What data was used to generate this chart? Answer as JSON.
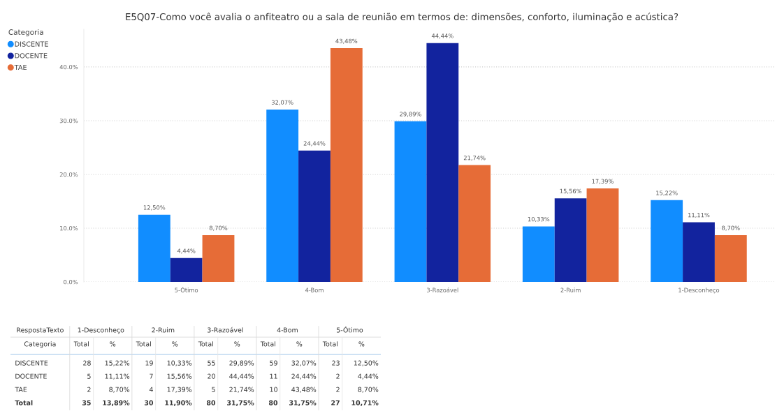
{
  "chart_data": [
    {
      "type": "bar",
      "title": "E5Q07-Como você avalia o anfiteatro ou a sala de reunião em termos de: dimensões, conforto, iluminação e acústica?",
      "legend_title": "Categoria",
      "categories": [
        "5-Ótimo",
        "4-Bom",
        "3-Razoável",
        "2-Ruim",
        "1-Desconheço"
      ],
      "series": [
        {
          "name": "DISCENTE",
          "color": "#118dff",
          "values": [
            12.5,
            32.07,
            29.89,
            10.33,
            15.22
          ],
          "value_labels": [
            "12,50%",
            "32,07%",
            "29,89%",
            "10,33%",
            "15,22%"
          ]
        },
        {
          "name": "DOCENTE",
          "color": "#12239e",
          "values": [
            4.44,
            24.44,
            44.44,
            15.56,
            11.11
          ],
          "value_labels": [
            "4,44%",
            "24,44%",
            "44,44%",
            "15,56%",
            "11,11%"
          ]
        },
        {
          "name": "TAE",
          "color": "#e66c37",
          "values": [
            8.7,
            43.48,
            21.74,
            17.39,
            8.7
          ],
          "value_labels": [
            "8,70%",
            "43,48%",
            "21,74%",
            "17,39%",
            "8,70%"
          ]
        }
      ],
      "ylim": [
        0,
        47
      ],
      "yticks": [
        {
          "value": 0,
          "label": "0.0%"
        },
        {
          "value": 10,
          "label": "10.0%"
        },
        {
          "value": 20,
          "label": "20.0%"
        },
        {
          "value": 30,
          "label": "30.0%"
        },
        {
          "value": 40,
          "label": "40.0%"
        }
      ],
      "grid": "y",
      "legend": "top left"
    },
    {
      "type": "other",
      "xlabel": "RespostaTexto",
      "ylabel": "Categoria",
      "categories": [
        "1-Desconheço",
        "2-Ruim",
        "3-Razoável",
        "4-Bom",
        "5-Ótimo"
      ],
      "y_categories": [
        "DISCENTE",
        "DOCENTE",
        "TAE",
        "Total"
      ],
      "annotations": [
        "Total",
        "%"
      ],
      "cell_labels": [
        [
          "28",
          "15,22%",
          "19",
          "10,33%",
          "55",
          "29,89%",
          "59",
          "32,07%",
          "23",
          "12,50%"
        ],
        [
          "5",
          "11,11%",
          "7",
          "15,56%",
          "20",
          "44,44%",
          "11",
          "24,44%",
          "2",
          "4,44%"
        ],
        [
          "2",
          "8,70%",
          "4",
          "17,39%",
          "5",
          "21,74%",
          "10",
          "43,48%",
          "2",
          "8,70%"
        ],
        [
          "35",
          "13,89%",
          "30",
          "11,90%",
          "80",
          "31,75%",
          "80",
          "31,75%",
          "27",
          "10,71%"
        ]
      ]
    }
  ]
}
